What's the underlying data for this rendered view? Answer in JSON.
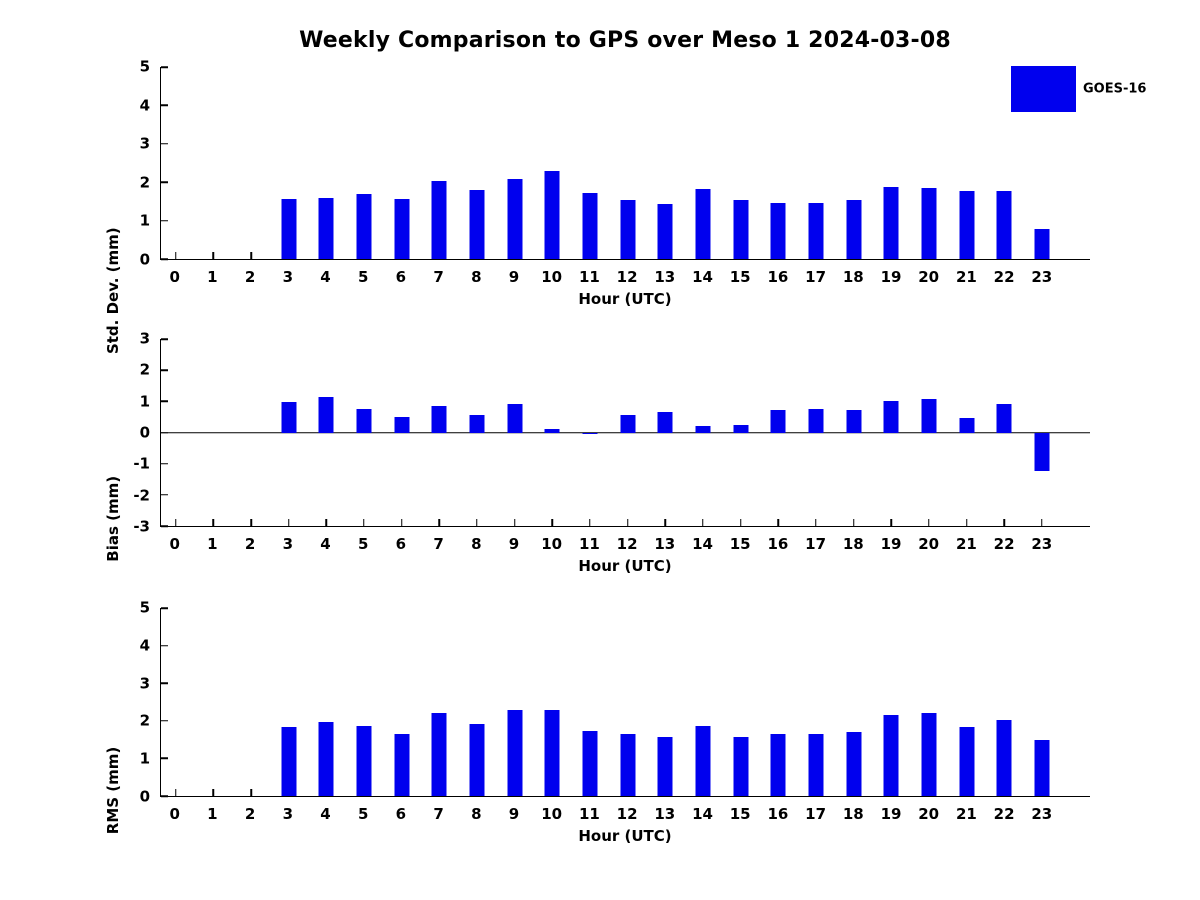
{
  "title": "Weekly Comparison to GPS over Meso 1 2024-03-08",
  "legend": {
    "label": "GOES-16"
  },
  "colors": {
    "bar": "#0000ee",
    "axis": "#000000",
    "text": "#000000"
  },
  "chart_data": [
    {
      "type": "bar",
      "name": "std-dev",
      "ylabel": "Std. Dev. (mm)",
      "xlabel": "Hour (UTC)",
      "ylim": [
        0,
        5
      ],
      "yticks": [
        0,
        1,
        2,
        3,
        4,
        5
      ],
      "grid": false,
      "legend_position": "upper-right-outside",
      "categories": [
        "0",
        "1",
        "2",
        "3",
        "4",
        "5",
        "6",
        "7",
        "8",
        "9",
        "10",
        "11",
        "12",
        "13",
        "14",
        "15",
        "16",
        "17",
        "18",
        "19",
        "20",
        "21",
        "22",
        "23"
      ],
      "series": [
        {
          "name": "GOES-16",
          "values": [
            null,
            null,
            null,
            1.56,
            1.59,
            1.7,
            1.57,
            2.03,
            1.8,
            2.08,
            2.29,
            1.72,
            1.53,
            1.42,
            1.82,
            1.53,
            1.46,
            1.46,
            1.54,
            1.88,
            1.86,
            1.78,
            1.78,
            0.79
          ]
        }
      ]
    },
    {
      "type": "bar",
      "name": "bias",
      "ylabel": "Bias (mm)",
      "xlabel": "Hour (UTC)",
      "ylim": [
        -3,
        3
      ],
      "yticks": [
        3,
        2,
        1,
        0,
        -1,
        -2,
        -3
      ],
      "grid": false,
      "categories": [
        "0",
        "1",
        "2",
        "3",
        "4",
        "5",
        "6",
        "7",
        "8",
        "9",
        "10",
        "11",
        "12",
        "13",
        "14",
        "15",
        "16",
        "17",
        "18",
        "19",
        "20",
        "21",
        "22",
        "23"
      ],
      "series": [
        {
          "name": "GOES-16",
          "values": [
            null,
            null,
            null,
            0.98,
            1.13,
            0.74,
            0.5,
            0.86,
            0.56,
            0.91,
            0.12,
            -0.04,
            0.56,
            0.67,
            0.21,
            0.23,
            0.73,
            0.74,
            0.73,
            1.01,
            1.09,
            0.48,
            0.92,
            -1.25
          ]
        }
      ]
    },
    {
      "type": "bar",
      "name": "rms",
      "ylabel": "RMS (mm)",
      "xlabel": "Hour (UTC)",
      "ylim": [
        0,
        5
      ],
      "yticks": [
        0,
        1,
        2,
        3,
        4,
        5
      ],
      "grid": false,
      "categories": [
        "0",
        "1",
        "2",
        "3",
        "4",
        "5",
        "6",
        "7",
        "8",
        "9",
        "10",
        "11",
        "12",
        "13",
        "14",
        "15",
        "16",
        "17",
        "18",
        "19",
        "20",
        "21",
        "22",
        "23"
      ],
      "series": [
        {
          "name": "GOES-16",
          "values": [
            null,
            null,
            null,
            1.83,
            1.96,
            1.86,
            1.64,
            2.22,
            1.91,
            2.3,
            2.3,
            1.73,
            1.64,
            1.57,
            1.86,
            1.57,
            1.64,
            1.64,
            1.71,
            2.16,
            2.21,
            1.83,
            2.02,
            1.48
          ]
        }
      ]
    }
  ]
}
